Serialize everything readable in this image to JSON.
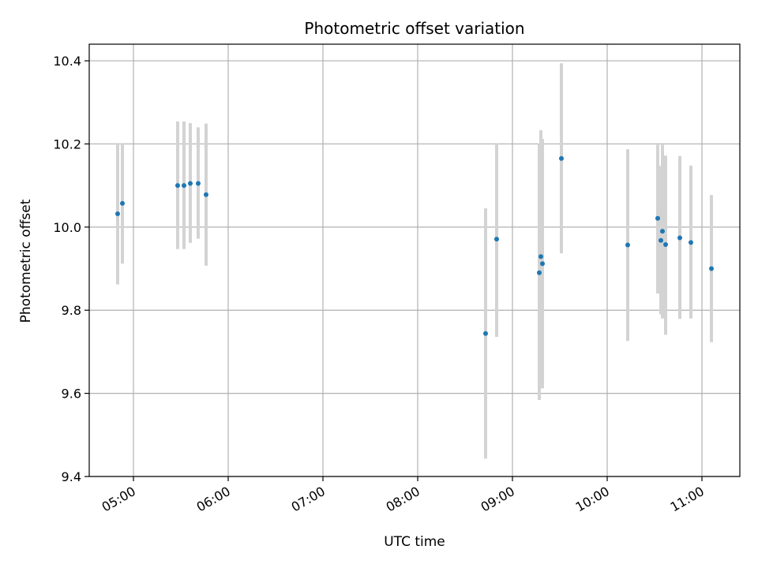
{
  "chart_data": {
    "type": "scatter",
    "title": "Photometric offset variation",
    "xlabel": "UTC time",
    "ylabel": "Photometric offset",
    "x_axis_type": "time",
    "xlim": [
      "04:32",
      "11:24"
    ],
    "ylim": [
      9.4,
      10.44
    ],
    "x_ticks": [
      "05:00",
      "06:00",
      "07:00",
      "08:00",
      "09:00",
      "10:00",
      "11:00"
    ],
    "y_ticks": [
      9.4,
      9.6,
      9.8,
      10.0,
      10.2,
      10.4
    ],
    "y_tick_labels": [
      "9.4",
      "9.6",
      "9.8",
      "10.0",
      "10.2",
      "10.4"
    ],
    "grid": true,
    "point_color": "#1f77b4",
    "errorbar_color": "#d3d3d3",
    "series": [
      {
        "points": [
          {
            "x": "04:50",
            "y": 10.032,
            "ylow": 9.862,
            "yhigh": 10.202
          },
          {
            "x": "04:53",
            "y": 10.057,
            "ylow": 9.912,
            "yhigh": 10.202
          },
          {
            "x": "05:28",
            "y": 10.1,
            "ylow": 9.947,
            "yhigh": 10.254
          },
          {
            "x": "05:32",
            "y": 10.1,
            "ylow": 9.947,
            "yhigh": 10.254
          },
          {
            "x": "05:36",
            "y": 10.105,
            "ylow": 9.962,
            "yhigh": 10.25
          },
          {
            "x": "05:41",
            "y": 10.105,
            "ylow": 9.972,
            "yhigh": 10.24
          },
          {
            "x": "05:46",
            "y": 10.078,
            "ylow": 9.907,
            "yhigh": 10.249
          },
          {
            "x": "08:43",
            "y": 9.744,
            "ylow": 9.443,
            "yhigh": 10.045
          },
          {
            "x": "08:50",
            "y": 9.971,
            "ylow": 9.736,
            "yhigh": 10.202
          },
          {
            "x": "09:17",
            "y": 9.89,
            "ylow": 9.584,
            "yhigh": 10.2
          },
          {
            "x": "09:18",
            "y": 9.929,
            "ylow": 9.626,
            "yhigh": 10.233
          },
          {
            "x": "09:19",
            "y": 9.912,
            "ylow": 9.612,
            "yhigh": 10.212
          },
          {
            "x": "09:31",
            "y": 10.165,
            "ylow": 9.937,
            "yhigh": 10.394
          },
          {
            "x": "10:13",
            "y": 9.957,
            "ylow": 9.726,
            "yhigh": 10.187
          },
          {
            "x": "10:32",
            "y": 10.021,
            "ylow": 9.84,
            "yhigh": 10.198
          },
          {
            "x": "10:34",
            "y": 9.968,
            "ylow": 9.79,
            "yhigh": 10.147
          },
          {
            "x": "10:35",
            "y": 9.99,
            "ylow": 9.78,
            "yhigh": 10.198
          },
          {
            "x": "10:37",
            "y": 9.958,
            "ylow": 9.741,
            "yhigh": 10.172
          },
          {
            "x": "10:46",
            "y": 9.974,
            "ylow": 9.779,
            "yhigh": 10.171
          },
          {
            "x": "10:53",
            "y": 9.963,
            "ylow": 9.78,
            "yhigh": 10.148
          },
          {
            "x": "11:06",
            "y": 9.9,
            "ylow": 9.723,
            "yhigh": 10.077
          }
        ]
      }
    ]
  }
}
